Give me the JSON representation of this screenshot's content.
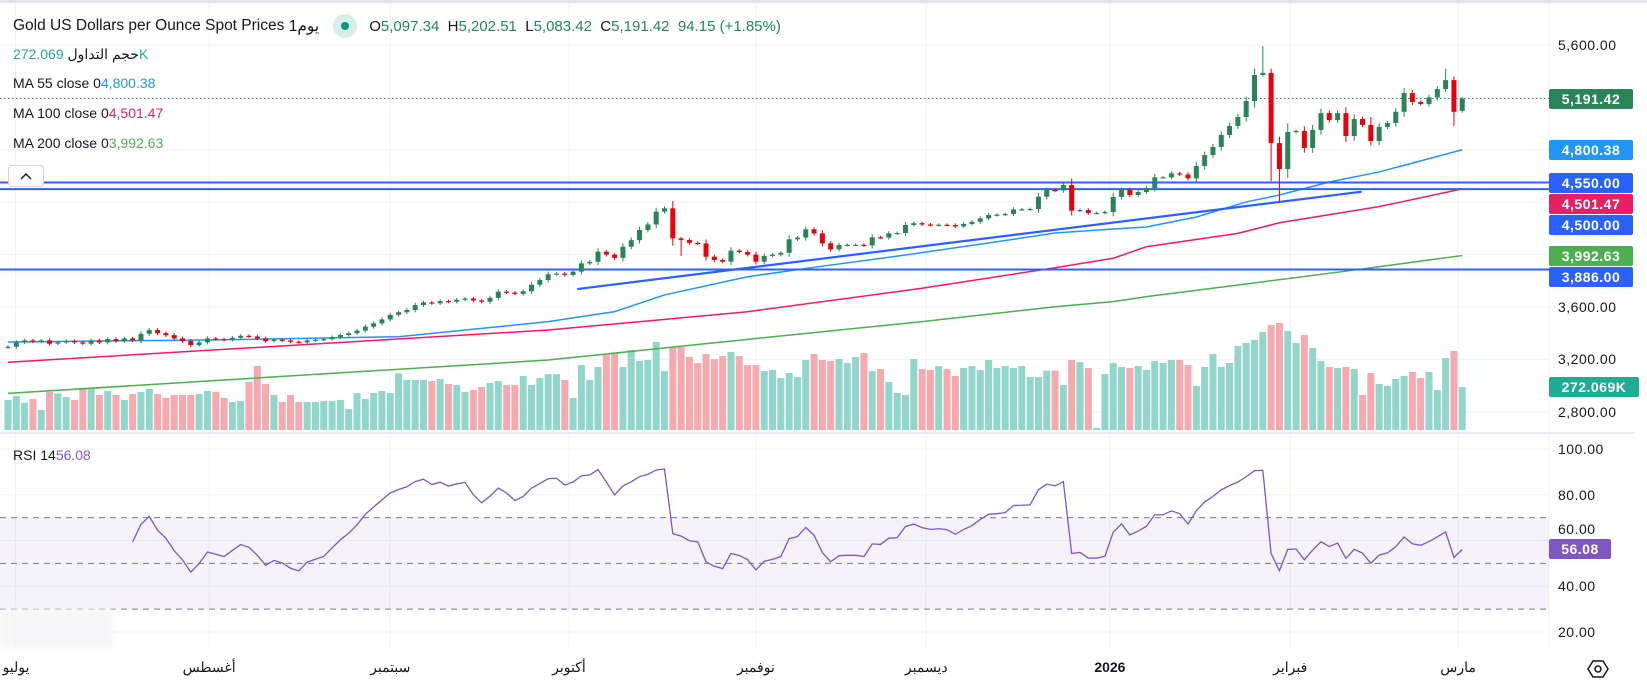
{
  "header": {
    "symbol": "Gold US Dollars per Ounce Spot Prices",
    "interval": "1يوم",
    "ohlc": {
      "o_label": "O",
      "o": "5,097.34",
      "h_label": "H",
      "h": "5,202.51",
      "l_label": "L",
      "l": "5,083.42",
      "c_label": "C",
      "c": "5,191.42",
      "change": "94.15 (+1.85%)"
    }
  },
  "legend": {
    "volume": {
      "label": "حجم التداول",
      "value": "272.069K"
    },
    "ma55": {
      "label": "MA  55 close 0",
      "value": "4,800.38"
    },
    "ma100": {
      "label": "MA  100 close 0",
      "value": "4,501.47"
    },
    "ma200": {
      "label": "MA  200 close 0",
      "value": "3,992.63"
    },
    "rsi": {
      "label": "RSI  14",
      "value": "56.08"
    }
  },
  "colors": {
    "up": "#2a8458",
    "down": "#e8000b",
    "vol_up": "#92d5ca",
    "vol_down": "#f7a9b0",
    "ma55": "#2196f3",
    "ma100": "#e91e63",
    "ma200": "#4caf50",
    "hline": "#2962ff",
    "rsi": "#7e57c2",
    "last": "#2a8458",
    "volume_badge": "#22ab94"
  },
  "price_axis": {
    "ticks": [
      {
        "value": 5600,
        "label": "5,600.00"
      },
      {
        "value": 3600,
        "label": "3,600.00"
      },
      {
        "value": 3200,
        "label": "3,200.00"
      },
      {
        "value": 2800,
        "label": "2,800.00"
      }
    ],
    "badges": [
      {
        "value": 5191.42,
        "label": "5,191.42",
        "color": "#2a8458"
      },
      {
        "value": 4800.38,
        "label": "4,800.38",
        "color": "#2196f3"
      },
      {
        "value": 4550,
        "label": "4,550.00",
        "color": "#2962ff"
      },
      {
        "value": 4501.47,
        "label": "4,501.47",
        "color": "#e91e63"
      },
      {
        "value": 4500,
        "label": "4,500.00",
        "color": "#2962ff"
      },
      {
        "value": 3992.63,
        "label": "3,992.63",
        "color": "#4caf50"
      },
      {
        "value": 3886,
        "label": "3,886.00",
        "color": "#2962ff"
      }
    ],
    "volume_badge": {
      "value": 272.069,
      "label": "272.069K"
    }
  },
  "rsi_axis": {
    "ticks": [
      {
        "value": 100,
        "label": "100.00"
      },
      {
        "value": 80,
        "label": "80.00"
      },
      {
        "value": 60,
        "label": "60.00"
      },
      {
        "value": 40,
        "label": "40.00"
      },
      {
        "value": 20,
        "label": "20.00"
      }
    ],
    "bands": [
      70,
      50,
      30
    ],
    "badge": {
      "value": 56.08,
      "label": "56.08"
    }
  },
  "time_axis": [
    {
      "label": "يوليو",
      "bar_index": 0.9
    },
    {
      "label": "أغسطس",
      "bar_index": 24.2
    },
    {
      "label": "سبتمبر",
      "bar_index": 46
    },
    {
      "label": "أكتوبر",
      "bar_index": 67.5
    },
    {
      "label": "نوفمبر",
      "bar_index": 90
    },
    {
      "label": "ديسمبر",
      "bar_index": 110.5
    },
    {
      "label": "2026",
      "bar_index": 132.6,
      "bold": true
    },
    {
      "label": "فبراير",
      "bar_index": 154.3
    },
    {
      "label": "مارس",
      "bar_index": 174.5
    }
  ],
  "chart_data": {
    "type": "candlestick",
    "title": "Gold US Dollars per Ounce Spot Prices 1D",
    "first_open": 3290,
    "last_bar": {
      "open": 5097.34,
      "high": 5202.51,
      "low": 5083.42,
      "close": 5191.42
    },
    "closes": [
      3297,
      3330,
      3345,
      3335,
      3345,
      3320,
      3330,
      3340,
      3330,
      3320,
      3345,
      3330,
      3355,
      3340,
      3360,
      3345,
      3395,
      3424,
      3400,
      3385,
      3360,
      3340,
      3310,
      3330,
      3360,
      3355,
      3350,
      3365,
      3380,
      3375,
      3360,
      3340,
      3350,
      3345,
      3335,
      3330,
      3345,
      3350,
      3355,
      3370,
      3386,
      3400,
      3420,
      3450,
      3475,
      3505,
      3540,
      3560,
      3577,
      3615,
      3635,
      3628,
      3645,
      3640,
      3655,
      3665,
      3650,
      3640,
      3670,
      3717,
      3710,
      3700,
      3720,
      3770,
      3806,
      3850,
      3855,
      3845,
      3870,
      3933,
      3945,
      4022,
      4000,
      3975,
      4060,
      4110,
      4188,
      4230,
      4328,
      4353,
      4124,
      4112,
      4090,
      4085,
      3984,
      3959,
      3946,
      4030,
      4020,
      4000,
      3946,
      3990,
      4000,
      4014,
      4117,
      4130,
      4193,
      4162,
      4086,
      4040,
      4073,
      4075,
      4075,
      4070,
      4132,
      4130,
      4162,
      4165,
      4226,
      4240,
      4230,
      4225,
      4228,
      4226,
      4215,
      4234,
      4250,
      4277,
      4302,
      4305,
      4310,
      4345,
      4346,
      4348,
      4442,
      4493,
      4490,
      4531,
      4335,
      4340,
      4318,
      4318,
      4325,
      4440,
      4493,
      4455,
      4478,
      4508,
      4590,
      4590,
      4620,
      4612,
      4582,
      4677,
      4760,
      4822,
      4913,
      4982,
      5050,
      5172,
      5371,
      5387,
      4851,
      4653,
      4936,
      4944,
      4814,
      4952,
      5080,
      5027,
      5080,
      4905,
      5035,
      4990,
      4867,
      4975,
      5005,
      5090,
      5233,
      5165,
      5150,
      5200,
      5264,
      5332,
      5090,
      5191.42
    ],
    "high_overrides": {
      "151": 5592,
      "152": 5420,
      "164": 5050,
      "173": 5420,
      "174": 5360
    },
    "low_overrides": {
      "153": 4400,
      "152": 4560,
      "128": 4300,
      "174": 4980,
      "81": 3990
    },
    "volume_k": [
      190,
      215,
      173,
      196,
      127,
      241,
      232,
      209,
      190,
      266,
      266,
      222,
      247,
      222,
      190,
      228,
      241,
      260,
      228,
      203,
      222,
      222,
      222,
      228,
      247,
      241,
      203,
      177,
      184,
      304,
      405,
      291,
      222,
      177,
      222,
      177,
      177,
      177,
      184,
      184,
      190,
      133,
      234,
      196,
      234,
      247,
      234,
      359,
      317,
      317,
      317,
      310,
      323,
      291,
      285,
      241,
      253,
      272,
      298,
      310,
      285,
      285,
      342,
      285,
      329,
      354,
      354,
      317,
      203,
      411,
      317,
      399,
      475,
      487,
      399,
      506,
      437,
      443,
      557,
      373,
      525,
      525,
      462,
      424,
      481,
      449,
      468,
      494,
      468,
      411,
      411,
      373,
      380,
      329,
      361,
      335,
      443,
      481,
      443,
      437,
      449,
      424,
      462,
      487,
      373,
      386,
      304,
      234,
      222,
      449,
      386,
      380,
      405,
      386,
      342,
      392,
      405,
      380,
      443,
      392,
      405,
      392,
      405,
      335,
      335,
      376,
      376,
      285,
      443,
      430,
      392,
      13,
      354,
      424,
      399,
      392,
      405,
      380,
      437,
      424,
      443,
      443,
      411,
      279,
      399,
      481,
      399,
      424,
      532,
      551,
      570,
      620,
      665,
      677,
      627,
      551,
      601,
      519,
      437,
      399,
      392,
      399,
      386,
      222,
      361,
      291,
      279,
      323,
      342,
      367,
      329,
      367,
      253,
      456,
      500,
      272.069
    ],
    "ma55": [
      [
        0,
        3333
      ],
      [
        24,
        3348
      ],
      [
        47,
        3373
      ],
      [
        65,
        3488
      ],
      [
        73,
        3565
      ],
      [
        76,
        3628
      ],
      [
        79,
        3692
      ],
      [
        89,
        3831
      ],
      [
        97,
        3903
      ],
      [
        108,
        3997
      ],
      [
        119,
        4098
      ],
      [
        126,
        4165
      ],
      [
        133,
        4195
      ],
      [
        137,
        4211
      ],
      [
        143,
        4287
      ],
      [
        149,
        4402
      ],
      [
        153,
        4455
      ],
      [
        159,
        4554
      ],
      [
        165,
        4631
      ],
      [
        175,
        4800.38
      ]
    ],
    "ma100": [
      [
        0,
        3178
      ],
      [
        65,
        3424
      ],
      [
        89,
        3564
      ],
      [
        110,
        3743
      ],
      [
        126,
        3900
      ],
      [
        133,
        3972
      ],
      [
        137,
        4060
      ],
      [
        148,
        4162
      ],
      [
        153,
        4243
      ],
      [
        165,
        4366
      ],
      [
        175,
        4501.47
      ]
    ],
    "ma200": [
      [
        0,
        2941
      ],
      [
        65,
        3195
      ],
      [
        89,
        3353
      ],
      [
        110,
        3488
      ],
      [
        126,
        3602
      ],
      [
        133,
        3641
      ],
      [
        137,
        3679
      ],
      [
        149,
        3776
      ],
      [
        162,
        3882
      ],
      [
        175,
        3992.63
      ]
    ],
    "horizontal_levels": [
      4550,
      4500,
      3886
    ],
    "trend_line": {
      "from": [
        68.5,
        3737
      ],
      "to": [
        162.9,
        4480
      ]
    },
    "rsi_period": 14,
    "rsi_last": 56.08
  }
}
